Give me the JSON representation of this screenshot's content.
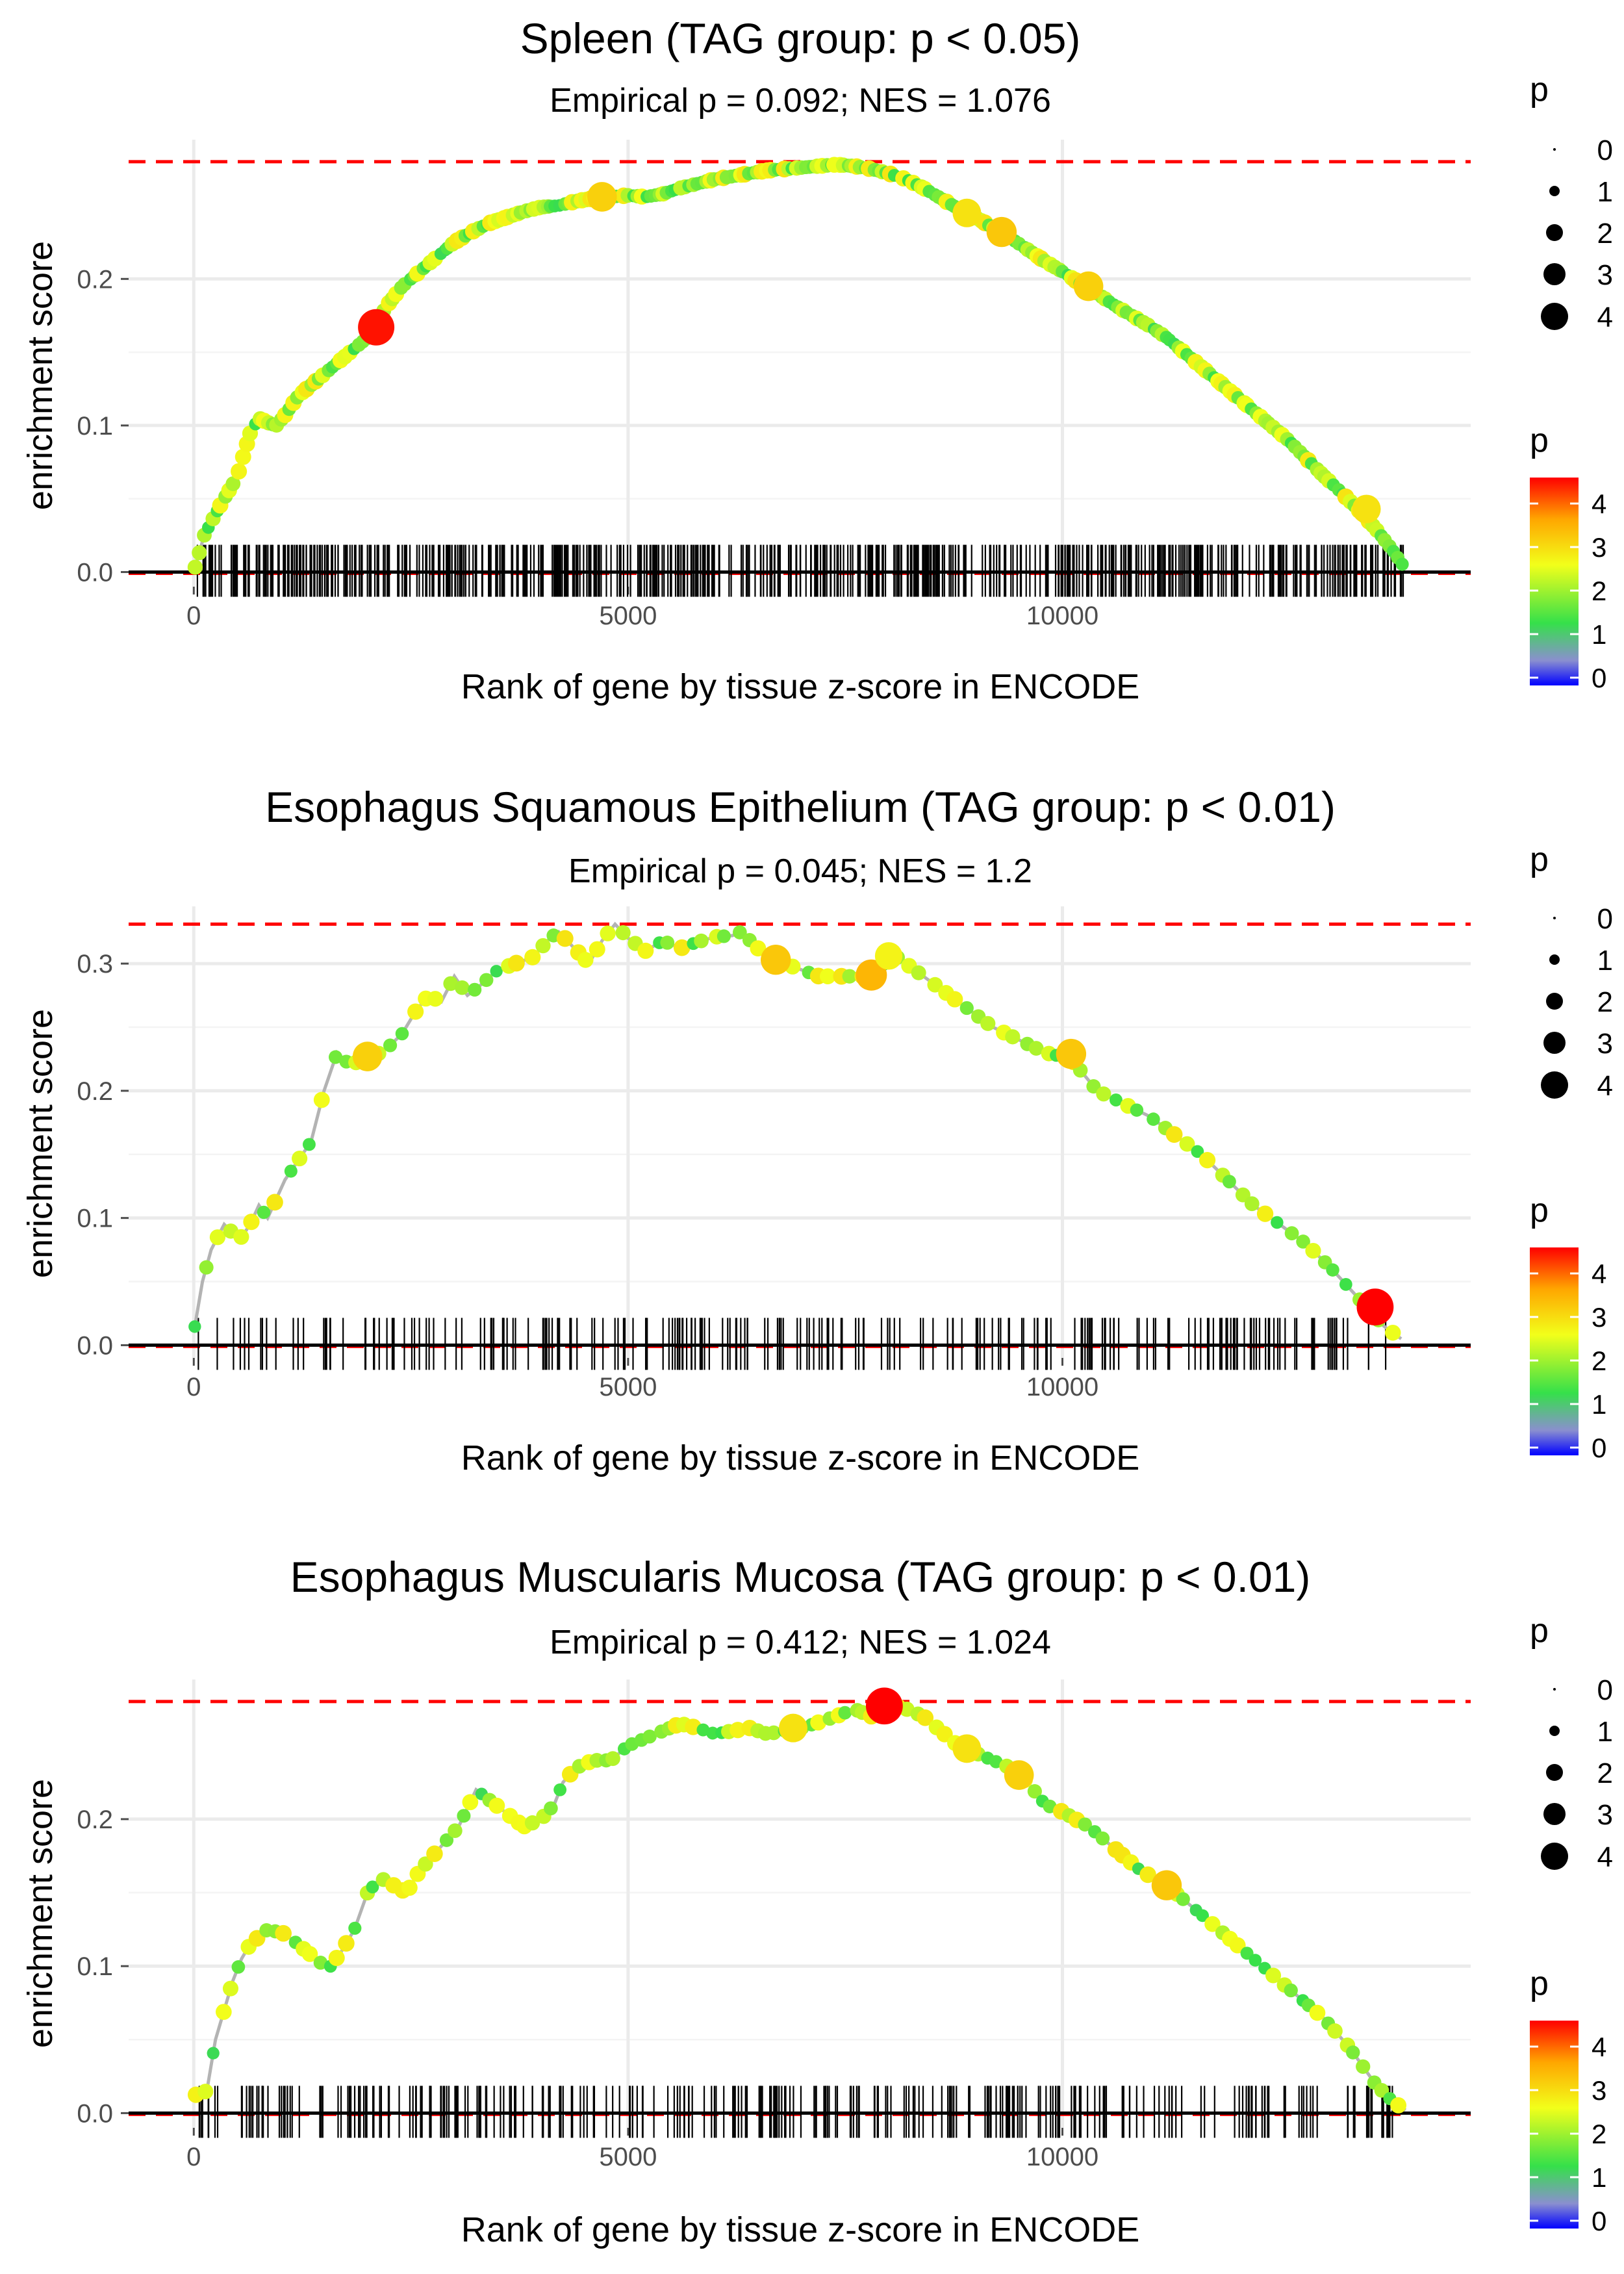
{
  "chart_data": [
    {
      "type": "line",
      "title": "Spleen (TAG group: p < 0.05)",
      "subtitle": "Empirical p = 0.092; NES = 1.076",
      "xlabel": "Rank of gene by tissue z-score in ENCODE",
      "ylabel": "enrichment score",
      "xlim": [
        -750,
        14700
      ],
      "ylim": [
        -0.01,
        0.295
      ],
      "x_ticks": [
        0,
        5000,
        10000
      ],
      "y_ticks": [
        0.0,
        0.1,
        0.2
      ],
      "x_tick_labels": [
        "0",
        "5000",
        "10000"
      ],
      "y_tick_labels": [
        "0.0",
        "0.1",
        "0.2"
      ],
      "max_es": 0.28,
      "grid": true,
      "curve": {
        "x": [
          0,
          120,
          300,
          500,
          650,
          750,
          850,
          950,
          1050,
          1200,
          1400,
          1600,
          1800,
          2000,
          2100,
          2200,
          2400,
          2600,
          2800,
          3000,
          3200,
          3400,
          3600,
          3800,
          4000,
          4200,
          4400,
          4600,
          4800,
          5000,
          5200,
          5400,
          5600,
          5800,
          6000,
          6200,
          6400,
          6600,
          6800,
          7000,
          7200,
          7400,
          7600,
          7800,
          8000,
          8200,
          8400,
          8600,
          8800,
          9000,
          9200,
          9400,
          9600,
          9800,
          10000,
          10200,
          10400,
          10600,
          10800,
          11000,
          11200,
          11400,
          11600,
          11800,
          12000,
          12200,
          12400,
          12600,
          12800,
          13000,
          13200,
          13400,
          13600,
          13800,
          13950
        ],
        "y": [
          0.0,
          0.025,
          0.045,
          0.065,
          0.095,
          0.105,
          0.102,
          0.1,
          0.107,
          0.12,
          0.13,
          0.14,
          0.15,
          0.16,
          0.167,
          0.18,
          0.195,
          0.205,
          0.215,
          0.225,
          0.232,
          0.238,
          0.242,
          0.246,
          0.249,
          0.25,
          0.253,
          0.255,
          0.256,
          0.257,
          0.256,
          0.258,
          0.262,
          0.265,
          0.268,
          0.27,
          0.272,
          0.274,
          0.275,
          0.276,
          0.277,
          0.278,
          0.277,
          0.275,
          0.272,
          0.268,
          0.262,
          0.255,
          0.248,
          0.242,
          0.235,
          0.228,
          0.22,
          0.212,
          0.205,
          0.197,
          0.19,
          0.182,
          0.175,
          0.168,
          0.16,
          0.15,
          0.14,
          0.13,
          0.12,
          0.11,
          0.1,
          0.09,
          0.078,
          0.066,
          0.055,
          0.043,
          0.03,
          0.015,
          0.002
        ]
      },
      "highlight_points": [
        {
          "x": 2100,
          "y": 0.167,
          "p": 4.5
        },
        {
          "x": 4700,
          "y": 0.256,
          "p": 3.2
        },
        {
          "x": 8900,
          "y": 0.245,
          "p": 3.0
        },
        {
          "x": 9300,
          "y": 0.232,
          "p": 3.3
        },
        {
          "x": 10300,
          "y": 0.195,
          "p": 3.2
        },
        {
          "x": 13500,
          "y": 0.043,
          "p": 3.0
        }
      ],
      "rug_count": 620,
      "rug_range": [
        40,
        13950
      ],
      "size_legend": {
        "title": "p",
        "levels": [
          "0",
          "1",
          "2",
          "3",
          "4"
        ]
      },
      "color_legend": {
        "title": "p",
        "ticks": [
          "0",
          "1",
          "2",
          "3",
          "4"
        ],
        "max": 4.6
      }
    },
    {
      "type": "line",
      "title": "Esophagus Squamous Epithelium (TAG group: p < 0.01)",
      "subtitle": "Empirical p = 0.045; NES = 1.2",
      "xlabel": "Rank of gene by tissue z-score in ENCODE",
      "ylabel": "enrichment score",
      "xlim": [
        -750,
        14700
      ],
      "ylim": [
        -0.01,
        0.345
      ],
      "x_ticks": [
        0,
        5000,
        10000
      ],
      "y_ticks": [
        0.0,
        0.1,
        0.2,
        0.3
      ],
      "x_tick_labels": [
        "0",
        "5000",
        "10000"
      ],
      "y_tick_labels": [
        "0.0",
        "0.1",
        "0.2",
        "0.3"
      ],
      "max_es": 0.331,
      "grid": true,
      "curve": {
        "x": [
          0,
          100,
          200,
          350,
          450,
          550,
          650,
          750,
          850,
          950,
          1050,
          1200,
          1350,
          1500,
          1650,
          1800,
          1950,
          2100,
          2250,
          2400,
          2550,
          2700,
          2850,
          3000,
          3150,
          3300,
          3500,
          3700,
          3900,
          4100,
          4200,
          4550,
          4700,
          4850,
          5000,
          5200,
          5400,
          5600,
          5800,
          6000,
          6200,
          6300,
          6600,
          6800,
          7000,
          7200,
          7400,
          7600,
          7800,
          8000,
          8100,
          8300,
          8600,
          8900,
          9200,
          9500,
          9800,
          10100,
          10400,
          10700,
          11000,
          11300,
          11600,
          11900,
          12200,
          12500,
          12800,
          13100,
          13300,
          13500,
          13700,
          13900
        ],
        "y": [
          0.01,
          0.05,
          0.075,
          0.095,
          0.088,
          0.085,
          0.095,
          0.11,
          0.1,
          0.115,
          0.13,
          0.145,
          0.16,
          0.2,
          0.23,
          0.22,
          0.225,
          0.228,
          0.235,
          0.245,
          0.262,
          0.275,
          0.27,
          0.29,
          0.275,
          0.283,
          0.295,
          0.3,
          0.305,
          0.32,
          0.325,
          0.3,
          0.318,
          0.331,
          0.32,
          0.31,
          0.318,
          0.312,
          0.317,
          0.321,
          0.322,
          0.325,
          0.305,
          0.3,
          0.295,
          0.29,
          0.29,
          0.29,
          0.29,
          0.303,
          0.305,
          0.295,
          0.28,
          0.265,
          0.25,
          0.24,
          0.23,
          0.225,
          0.2,
          0.19,
          0.18,
          0.165,
          0.15,
          0.13,
          0.11,
          0.095,
          0.08,
          0.06,
          0.045,
          0.03,
          0.015,
          0.005
        ]
      },
      "highlight_points": [
        {
          "x": 2000,
          "y": 0.227,
          "p": 3.2
        },
        {
          "x": 6700,
          "y": 0.303,
          "p": 3.3
        },
        {
          "x": 7800,
          "y": 0.291,
          "p": 3.5
        },
        {
          "x": 8000,
          "y": 0.306,
          "p": 2.8
        },
        {
          "x": 10100,
          "y": 0.229,
          "p": 3.3
        },
        {
          "x": 13600,
          "y": 0.03,
          "p": 4.6
        }
      ],
      "rug_count": 230,
      "rug_range": [
        40,
        13950
      ],
      "size_legend": {
        "title": "p",
        "levels": [
          "0",
          "1",
          "2",
          "3",
          "4"
        ]
      },
      "color_legend": {
        "title": "p",
        "ticks": [
          "0",
          "1",
          "2",
          "3",
          "4"
        ],
        "max": 4.6
      }
    },
    {
      "type": "line",
      "title": "Esophagus Muscularis Mucosa (TAG group: p < 0.01)",
      "subtitle": "Empirical p = 0.412; NES = 1.024",
      "xlabel": "Rank of gene by tissue z-score in ENCODE",
      "ylabel": "enrichment score",
      "xlim": [
        -750,
        14700
      ],
      "ylim": [
        -0.01,
        0.295
      ],
      "x_ticks": [
        0,
        5000,
        10000
      ],
      "y_ticks": [
        0.0,
        0.1,
        0.2
      ],
      "x_tick_labels": [
        "0",
        "5000",
        "10000"
      ],
      "y_tick_labels": [
        "0.0",
        "0.1",
        "0.2"
      ],
      "max_es": 0.28,
      "grid": true,
      "curve": {
        "x": [
          0,
          150,
          250,
          350,
          450,
          550,
          650,
          750,
          850,
          1050,
          1550,
          1700,
          1850,
          2000,
          2150,
          2300,
          2450,
          2600,
          2750,
          2900,
          3050,
          3250,
          3800,
          4000,
          4150,
          4250,
          4400,
          4600,
          4800,
          5000,
          5200,
          5400,
          5600,
          5800,
          6000,
          6200,
          6400,
          6600,
          6800,
          7000,
          7200,
          7400,
          7600,
          7800,
          8000,
          8200,
          8400,
          8600,
          8800,
          9000,
          9200,
          9400,
          9600,
          9800,
          10000,
          10300,
          10600,
          10900,
          11200,
          11500,
          11800,
          12100,
          12400,
          12700,
          13000,
          13300,
          13600,
          13800,
          13950
        ],
        "y": [
          0.012,
          0.015,
          0.05,
          0.07,
          0.09,
          0.105,
          0.115,
          0.12,
          0.125,
          0.122,
          0.098,
          0.11,
          0.125,
          0.15,
          0.16,
          0.155,
          0.15,
          0.165,
          0.175,
          0.185,
          0.195,
          0.22,
          0.195,
          0.2,
          0.21,
          0.225,
          0.235,
          0.24,
          0.24,
          0.25,
          0.255,
          0.26,
          0.265,
          0.262,
          0.258,
          0.26,
          0.262,
          0.258,
          0.26,
          0.262,
          0.266,
          0.27,
          0.275,
          0.27,
          0.278,
          0.275,
          0.27,
          0.26,
          0.25,
          0.245,
          0.24,
          0.235,
          0.225,
          0.21,
          0.205,
          0.195,
          0.18,
          0.165,
          0.155,
          0.14,
          0.125,
          0.11,
          0.095,
          0.08,
          0.065,
          0.045,
          0.02,
          0.008,
          0.002
        ]
      },
      "highlight_points": [
        {
          "x": 6900,
          "y": 0.262,
          "p": 3.0
        },
        {
          "x": 7950,
          "y": 0.277,
          "p": 4.6
        },
        {
          "x": 8900,
          "y": 0.248,
          "p": 3.0
        },
        {
          "x": 9500,
          "y": 0.23,
          "p": 3.2
        },
        {
          "x": 11200,
          "y": 0.155,
          "p": 3.3
        }
      ],
      "rug_count": 300,
      "rug_range": [
        40,
        13950
      ],
      "size_legend": {
        "title": "p",
        "levels": [
          "0",
          "1",
          "2",
          "3",
          "4"
        ]
      },
      "color_legend": {
        "title": "p",
        "ticks": [
          "0",
          "1",
          "2",
          "3",
          "4"
        ],
        "max": 4.6
      }
    }
  ]
}
